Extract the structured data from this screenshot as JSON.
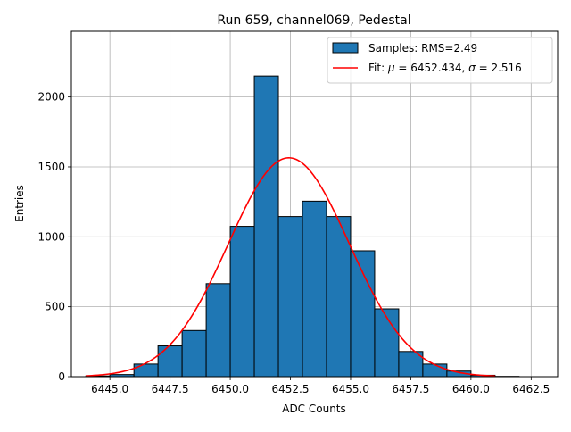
{
  "chart_data": {
    "type": "bar",
    "title": "Run 659, channel069, Pedestal",
    "xlabel": "ADC Counts",
    "ylabel": "Entries",
    "xlim": [
      6443.4,
      6463.6
    ],
    "ylim": [
      0,
      2470
    ],
    "x_ticks": [
      6445.0,
      6447.5,
      6450.0,
      6452.5,
      6455.0,
      6457.5,
      6460.0,
      6462.5
    ],
    "x_tick_labels": [
      "6445.0",
      "6447.5",
      "6450.0",
      "6452.5",
      "6455.0",
      "6457.5",
      "6460.0",
      "6462.5"
    ],
    "y_ticks": [
      0,
      500,
      1000,
      1500,
      2000
    ],
    "y_tick_labels": [
      "0",
      "500",
      "1000",
      "1500",
      "2000"
    ],
    "grid": true,
    "legend_position": "upper-right",
    "histogram": {
      "name": "Samples: RMS=2.49",
      "color": "#1f77b4",
      "edge_color": "#000000",
      "bins": [
        {
          "left": 6444.0,
          "right": 6445.0,
          "value": 5
        },
        {
          "left": 6445.0,
          "right": 6446.0,
          "value": 15
        },
        {
          "left": 6446.0,
          "right": 6447.0,
          "value": 90
        },
        {
          "left": 6447.0,
          "right": 6448.0,
          "value": 220
        },
        {
          "left": 6448.0,
          "right": 6449.0,
          "value": 330
        },
        {
          "left": 6449.0,
          "right": 6450.0,
          "value": 665
        },
        {
          "left": 6450.0,
          "right": 6451.0,
          "value": 1075
        },
        {
          "left": 6451.0,
          "right": 6452.0,
          "value": 2150
        },
        {
          "left": 6452.0,
          "right": 6453.0,
          "value": 1145
        },
        {
          "left": 6453.0,
          "right": 6454.0,
          "value": 1255
        },
        {
          "left": 6454.0,
          "right": 6455.0,
          "value": 1145
        },
        {
          "left": 6455.0,
          "right": 6456.0,
          "value": 900
        },
        {
          "left": 6456.0,
          "right": 6457.0,
          "value": 485
        },
        {
          "left": 6457.0,
          "right": 6458.0,
          "value": 180
        },
        {
          "left": 6458.0,
          "right": 6459.0,
          "value": 90
        },
        {
          "left": 6459.0,
          "right": 6460.0,
          "value": 40
        },
        {
          "left": 6460.0,
          "right": 6461.0,
          "value": 10
        },
        {
          "left": 6461.0,
          "right": 6462.0,
          "value": 2
        }
      ]
    },
    "fit": {
      "name_prefix": "Fit: ",
      "mu_symbol": "μ",
      "mu_text": " = 6452.434, ",
      "sigma_symbol": "σ",
      "sigma_text": " = 2.516",
      "color": "#ff0000",
      "mu": 6452.434,
      "sigma": 2.516,
      "amplitude": 1565,
      "x_range": [
        6444.0,
        6461.0
      ]
    }
  }
}
